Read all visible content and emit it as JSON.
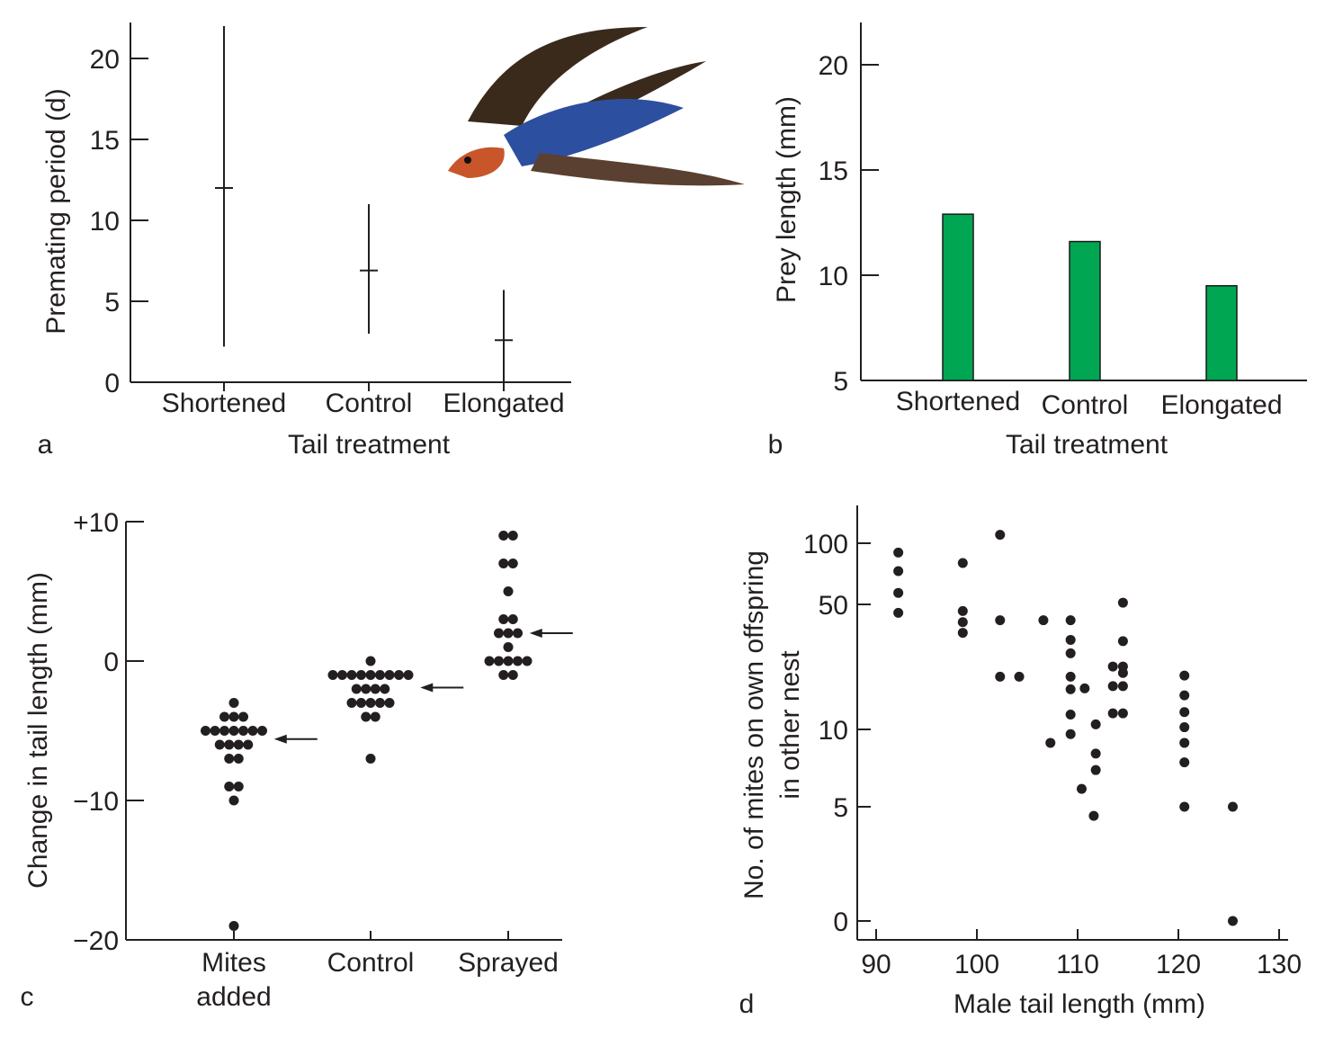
{
  "colors": {
    "ink": "#231f20",
    "bar_fill": "#00a651",
    "bar_stroke": "#1a1a1a"
  },
  "chart_data": [
    {
      "panel": "a",
      "type": "errorbar",
      "xlabel": "Tail treatment",
      "ylabel": "Premating period (d)",
      "categories": [
        "Shortened",
        "Control",
        "Elongated"
      ],
      "mean": [
        12.0,
        6.9,
        2.6
      ],
      "low": [
        2.2,
        3.0,
        0.0
      ],
      "high": [
        22.0,
        11.0,
        5.7
      ],
      "yticks": [
        0,
        5,
        10,
        15,
        20
      ],
      "ylim": [
        0,
        22
      ],
      "inset_image": "barn-swallow-in-flight"
    },
    {
      "panel": "b",
      "type": "bar",
      "xlabel": "Tail treatment",
      "ylabel": "Prey length (mm)",
      "categories": [
        "Shortened",
        "Control",
        "Elongated"
      ],
      "values": [
        12.9,
        11.6,
        9.5
      ],
      "yticks": [
        5,
        10,
        15,
        20
      ],
      "ylim": [
        5,
        22
      ]
    },
    {
      "panel": "c",
      "type": "scatter",
      "subtype": "dot-plot",
      "ylabel": "Change in tail length (mm)",
      "categories": [
        "Mites\nadded",
        "Control",
        "Sprayed"
      ],
      "category_lines": [
        [
          "Mites",
          "added"
        ],
        [
          "Control"
        ],
        [
          "Sprayed"
        ]
      ],
      "ytick_labels": [
        "+10",
        "0",
        "−10",
        "−20"
      ],
      "yticks": [
        10,
        0,
        -10,
        -20
      ],
      "ylim": [
        -20,
        10
      ],
      "groups": [
        {
          "rows": [
            {
              "y": -3,
              "n": 1
            },
            {
              "y": -4,
              "n": 3
            },
            {
              "y": -5,
              "n": 7
            },
            {
              "y": -6,
              "n": 4
            },
            {
              "y": -7,
              "n": 2
            },
            {
              "y": -9,
              "n": 2
            },
            {
              "y": -10,
              "n": 1
            },
            {
              "y": -19,
              "n": 1
            }
          ],
          "mean_arrow": -5.6
        },
        {
          "rows": [
            {
              "y": 0,
              "n": 1
            },
            {
              "y": -1,
              "n": 9
            },
            {
              "y": -2,
              "n": 4
            },
            {
              "y": -3,
              "n": 5
            },
            {
              "y": -4,
              "n": 2
            },
            {
              "y": -7,
              "n": 1
            }
          ],
          "mean_arrow": -1.9
        },
        {
          "rows": [
            {
              "y": 9,
              "n": 2
            },
            {
              "y": 7,
              "n": 2
            },
            {
              "y": 5,
              "n": 1
            },
            {
              "y": 3,
              "n": 2
            },
            {
              "y": 2,
              "n": 3
            },
            {
              "y": 1,
              "n": 1
            },
            {
              "y": 0,
              "n": 5
            },
            {
              "y": -1,
              "n": 2
            }
          ],
          "mean_arrow": 2.0
        }
      ]
    },
    {
      "panel": "d",
      "type": "scatter",
      "xlabel": "Male tail length (mm)",
      "ylabel_lines": [
        "No. of mites on own offspring",
        "in other nest"
      ],
      "xticks": [
        90,
        100,
        110,
        120,
        130
      ],
      "xlim": [
        88,
        131
      ],
      "yticks": [
        0,
        5,
        10,
        50,
        100
      ],
      "yscale": "log-like (0, 5, 10, 50, 100)",
      "points": [
        [
          92.2,
          90
        ],
        [
          92.2,
          73
        ],
        [
          92.2,
          57
        ],
        [
          92.2,
          45
        ],
        [
          98.6,
          80
        ],
        [
          98.6,
          46
        ],
        [
          98.6,
          40
        ],
        [
          98.6,
          35
        ],
        [
          102.3,
          110
        ],
        [
          102.3,
          41
        ],
        [
          102.3,
          20
        ],
        [
          104.2,
          20
        ],
        [
          106.6,
          41
        ],
        [
          109.3,
          41
        ],
        [
          109.3,
          32
        ],
        [
          109.3,
          27
        ],
        [
          109.3,
          20
        ],
        [
          109.3,
          17
        ],
        [
          109.3,
          12.2
        ],
        [
          109.3,
          9.6
        ],
        [
          110.7,
          17.2
        ],
        [
          107.3,
          8.9
        ],
        [
          111.8,
          10.7
        ],
        [
          111.8,
          8.1
        ],
        [
          111.8,
          7.0
        ],
        [
          110.4,
          5.9
        ],
        [
          111.6,
          4.2
        ],
        [
          113.5,
          22.8
        ],
        [
          113.5,
          17.7
        ],
        [
          113.5,
          12.4
        ],
        [
          114.5,
          51
        ],
        [
          114.5,
          31.5
        ],
        [
          114.5,
          22.8
        ],
        [
          114.5,
          21
        ],
        [
          114.5,
          17.7
        ],
        [
          114.5,
          12.4
        ],
        [
          120.6,
          20.3
        ],
        [
          120.6,
          15.7
        ],
        [
          120.6,
          12.6
        ],
        [
          120.6,
          10.3
        ],
        [
          120.6,
          8.9
        ],
        [
          120.6,
          7.5
        ],
        [
          120.6,
          5
        ],
        [
          125.4,
          5
        ],
        [
          125.4,
          0
        ]
      ]
    }
  ]
}
